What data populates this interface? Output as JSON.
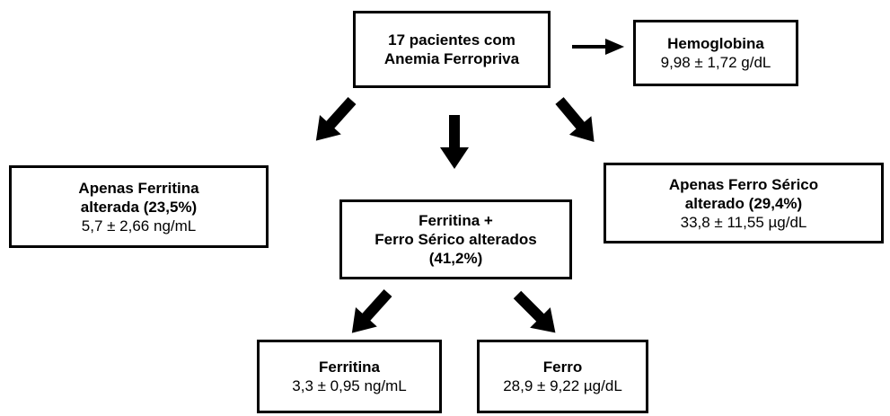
{
  "nodes": [
    {
      "title": [
        "17 pacientes com",
        "Anemia Ferropriva"
      ]
    },
    {
      "title": [
        "Hemoglobina"
      ],
      "detail": "9,98 ± 1,72 g/dL"
    },
    {
      "title": [
        "Apenas Ferritina",
        "alterada (23,5%)"
      ],
      "detail": "5,7 ± 2,66 ng/mL"
    },
    {
      "title": [
        "Ferritina +",
        "Ferro Sérico alterados",
        "(41,2%)"
      ]
    },
    {
      "title": [
        "Apenas Ferro Sérico",
        "alterado (29,4%)"
      ],
      "detail": "33,8 ± 11,55 µg/dL"
    },
    {
      "title": [
        "Ferritina"
      ],
      "detail": "3,3 ± 0,95 ng/mL"
    },
    {
      "title": [
        "Ferro"
      ],
      "detail": "28,9 ± 9,22 µg/dL"
    }
  ]
}
